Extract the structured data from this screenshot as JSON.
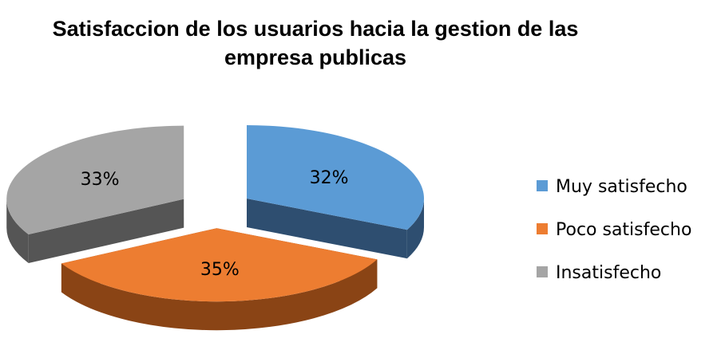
{
  "chart_data": {
    "type": "pie",
    "title": [
      "Satisfaccion de los usuarios hacia la gestion de las",
      "empresa publicas"
    ],
    "slices": [
      {
        "name": "Muy satisfecho",
        "value": 32,
        "label": "32%",
        "color": "#5B9BD5",
        "side_color": "#2E4E70"
      },
      {
        "name": "Poco satisfecho",
        "value": 35,
        "label": "35%",
        "color": "#ED7D31",
        "side_color": "#8A4415"
      },
      {
        "name": "Insatisfecho",
        "value": 33,
        "label": "33%",
        "color": "#A5A5A5",
        "side_color": "#555555"
      }
    ],
    "legend_position": "right",
    "style": "3d-exploded-pie"
  }
}
